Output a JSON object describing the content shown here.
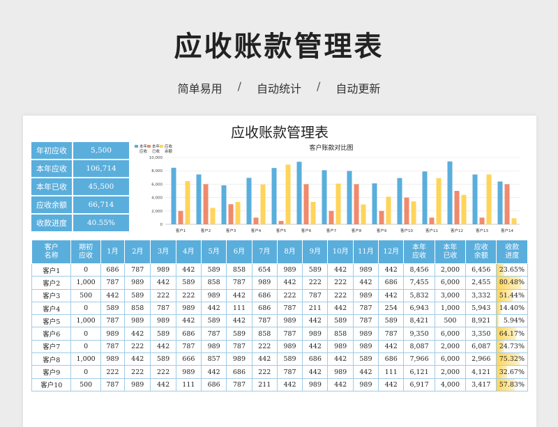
{
  "page": {
    "title": "应收账款管理表",
    "features": [
      "简单易用",
      "自动统计",
      "自动更新"
    ],
    "separator": "/"
  },
  "sheet": {
    "title": "应收账款管理表",
    "summary": [
      {
        "label": "年初应收",
        "value": "5,500"
      },
      {
        "label": "本年应收",
        "value": "106,714"
      },
      {
        "label": "本年已收",
        "value": "45,500"
      },
      {
        "label": "应收余额",
        "value": "66,714"
      },
      {
        "label": "收款进度",
        "value": "40.55%"
      }
    ],
    "headers": [
      "客户名称",
      "期初应收",
      "1月",
      "2月",
      "3月",
      "4月",
      "5月",
      "6月",
      "7月",
      "8月",
      "9月",
      "10月",
      "11月",
      "12月",
      "本年应收",
      "本年已收",
      "应收余额",
      "收款进度"
    ],
    "rows": [
      [
        "客户1",
        "0",
        "686",
        "787",
        "989",
        "442",
        "589",
        "858",
        "654",
        "989",
        "589",
        "442",
        "989",
        "442",
        "8,456",
        "2,000",
        "6,456",
        "23.65%"
      ],
      [
        "客户2",
        "1,000",
        "787",
        "989",
        "442",
        "589",
        "858",
        "787",
        "989",
        "442",
        "222",
        "222",
        "442",
        "686",
        "7,455",
        "6,000",
        "2,455",
        "80.48%"
      ],
      [
        "客户3",
        "500",
        "442",
        "589",
        "222",
        "222",
        "989",
        "442",
        "686",
        "222",
        "787",
        "222",
        "989",
        "442",
        "5,832",
        "3,000",
        "3,332",
        "51.44%"
      ],
      [
        "客户4",
        "0",
        "589",
        "858",
        "787",
        "989",
        "442",
        "111",
        "686",
        "787",
        "211",
        "442",
        "787",
        "254",
        "6,943",
        "1,000",
        "5,943",
        "14.40%"
      ],
      [
        "客户5",
        "1,000",
        "787",
        "989",
        "989",
        "442",
        "589",
        "442",
        "787",
        "989",
        "442",
        "589",
        "787",
        "589",
        "8,421",
        "500",
        "8,921",
        "5.94%"
      ],
      [
        "客户6",
        "0",
        "989",
        "442",
        "589",
        "686",
        "787",
        "589",
        "858",
        "787",
        "989",
        "858",
        "989",
        "787",
        "9,350",
        "6,000",
        "3,350",
        "64.17%"
      ],
      [
        "客户7",
        "0",
        "787",
        "222",
        "442",
        "787",
        "989",
        "787",
        "222",
        "989",
        "442",
        "989",
        "989",
        "442",
        "8,087",
        "2,000",
        "6,087",
        "24.73%"
      ],
      [
        "客户8",
        "1,000",
        "989",
        "442",
        "589",
        "666",
        "857",
        "989",
        "442",
        "589",
        "686",
        "442",
        "589",
        "686",
        "7,966",
        "6,000",
        "2,966",
        "75.32%"
      ],
      [
        "客户9",
        "0",
        "222",
        "222",
        "222",
        "989",
        "442",
        "686",
        "222",
        "787",
        "442",
        "989",
        "442",
        "111",
        "6,121",
        "2,000",
        "4,121",
        "32.67%"
      ],
      [
        "客户10",
        "500",
        "787",
        "989",
        "442",
        "111",
        "686",
        "787",
        "211",
        "442",
        "989",
        "442",
        "989",
        "442",
        "6,917",
        "4,000",
        "3,417",
        "57.83%"
      ]
    ],
    "progress_values": [
      0.2365,
      0.8048,
      0.5144,
      0.144,
      0.0594,
      0.6417,
      0.2473,
      0.7532,
      0.3267,
      0.5783
    ]
  },
  "chart_data": {
    "type": "bar",
    "title": "客户账款对比图",
    "categories": [
      "客户1",
      "客户2",
      "客户3",
      "客户4",
      "客户5",
      "客户6",
      "客户7",
      "客户8",
      "客户9",
      "客户10",
      "客户11",
      "客户12",
      "客户13",
      "客户14"
    ],
    "series": [
      {
        "name": "本年应收",
        "color": "#5aaedc",
        "values": [
          8456,
          7455,
          5832,
          6943,
          8421,
          9350,
          8087,
          7966,
          6121,
          6917,
          7900,
          9400,
          7450,
          6400
        ]
      },
      {
        "name": "本年已收",
        "color": "#f08a6c",
        "values": [
          2000,
          6000,
          3000,
          1000,
          500,
          6000,
          2000,
          6000,
          2000,
          4000,
          1000,
          5000,
          1000,
          6000
        ]
      },
      {
        "name": "应收余额",
        "color": "#ffd45a",
        "values": [
          6456,
          2455,
          3332,
          5943,
          8921,
          3350,
          6087,
          2966,
          4121,
          3417,
          6900,
          4400,
          7450,
          900
        ]
      }
    ],
    "legend_labels": [
      "本年应收",
      "本年已收",
      "应收余额"
    ],
    "ylim": [
      0,
      10000
    ],
    "yticks": [
      "10,000",
      "8,000",
      "6,000",
      "4,000",
      "2,000",
      "0"
    ],
    "grid": true,
    "legend": "top-left"
  }
}
